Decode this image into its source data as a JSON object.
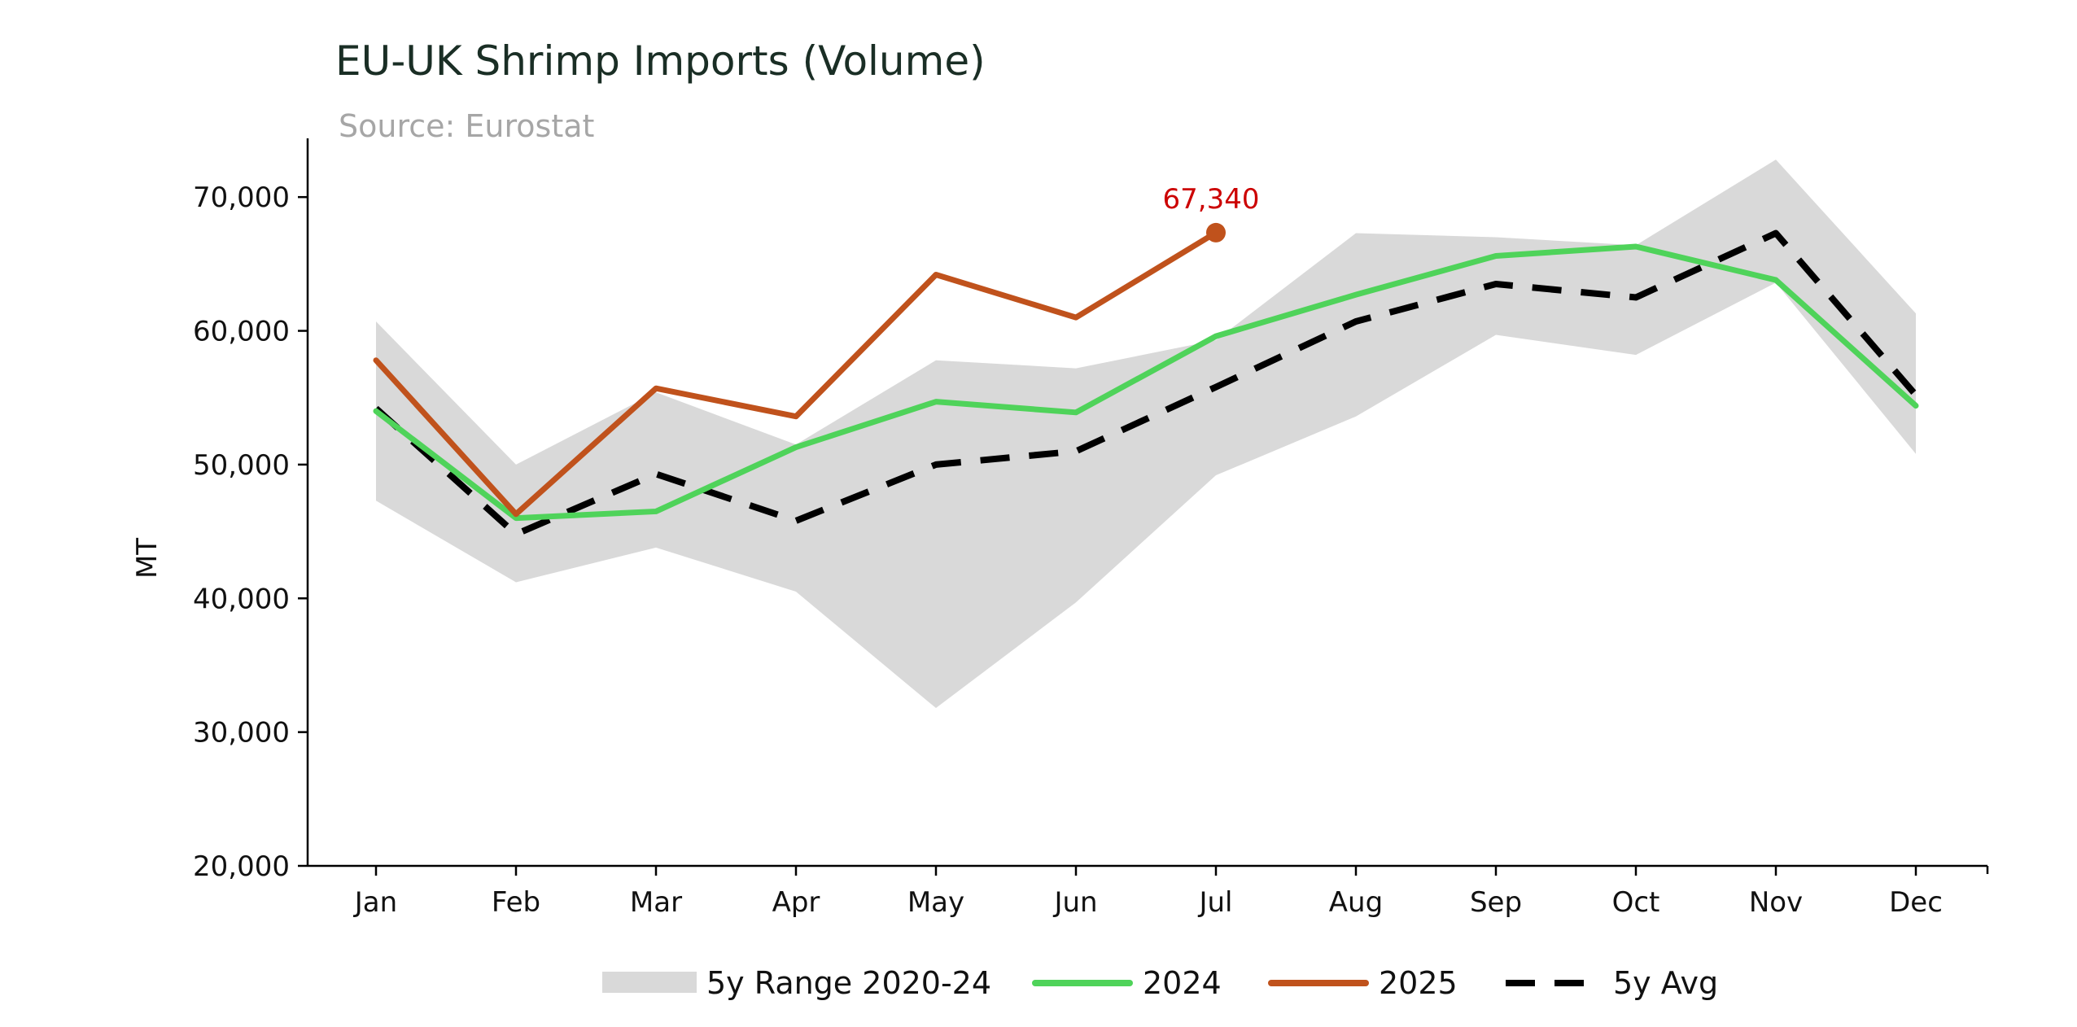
{
  "chart_data": {
    "type": "line",
    "title": "EU-UK Shrimp Imports (Volume)",
    "subtitle": "Source: Eurostat",
    "xlabel": "",
    "ylabel": "MT",
    "ylim": [
      20000,
      75000
    ],
    "yticks": [
      20000,
      30000,
      40000,
      50000,
      60000,
      70000
    ],
    "ytick_labels": [
      "20,000",
      "30,000",
      "40,000",
      "50,000",
      "60,000",
      "70,000"
    ],
    "categories": [
      "Jan",
      "Feb",
      "Mar",
      "Apr",
      "May",
      "Jun",
      "Jul",
      "Aug",
      "Sep",
      "Oct",
      "Nov",
      "Dec"
    ],
    "range_band": {
      "name": "5y Range 2020-24",
      "low": [
        47300,
        41200,
        43800,
        40500,
        31800,
        39700,
        49200,
        53600,
        59700,
        58200,
        63600,
        50800
      ],
      "high": [
        60700,
        50000,
        55400,
        51500,
        57800,
        57200,
        59300,
        67300,
        67000,
        66400,
        72800,
        61300
      ],
      "color": "#d9d9d9"
    },
    "series": [
      {
        "name": "2024",
        "values": [
          54000,
          46000,
          46500,
          51300,
          54700,
          53900,
          59600,
          62700,
          65600,
          66300,
          63800,
          54400
        ],
        "color": "#4fd35a",
        "style": "solid"
      },
      {
        "name": "2025",
        "values": [
          57800,
          46300,
          55700,
          53600,
          64200,
          61000,
          67340,
          null,
          null,
          null,
          null,
          null
        ],
        "color": "#c0521c",
        "style": "solid",
        "end_marker": true
      },
      {
        "name": "5y Avg",
        "values": [
          54200,
          44800,
          49300,
          45800,
          50000,
          51000,
          55800,
          60700,
          63500,
          62500,
          67300,
          55200
        ],
        "color": "#000000",
        "style": "dashed"
      }
    ],
    "annotations": [
      {
        "text": "67,340",
        "series": "2025",
        "category": "Jul",
        "color": "#cc0000"
      }
    ],
    "legend": {
      "position": "bottom-center",
      "items": [
        "5y Range 2020-24",
        "2024",
        "2025",
        "5y Avg"
      ]
    },
    "grid": false
  }
}
